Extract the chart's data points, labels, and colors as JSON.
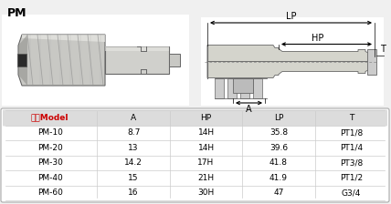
{
  "title": "PM",
  "bg_color": "#f0f0f0",
  "table_header": [
    "型号Model",
    "A",
    "HP",
    "LP",
    "T"
  ],
  "table_rows": [
    [
      "PM-10",
      "8.7",
      "14H",
      "35.8",
      "PT1/8"
    ],
    [
      "PM-20",
      "13",
      "14H",
      "39.6",
      "PT1/4"
    ],
    [
      "PM-30",
      "14.2",
      "17H",
      "41.8",
      "PT3/8"
    ],
    [
      "PM-40",
      "15",
      "21H",
      "41.9",
      "PT1/2"
    ],
    [
      "PM-60",
      "16",
      "30H",
      "47",
      "G3/4"
    ]
  ],
  "header_text_color": "#cc0000",
  "table_text_color": "#000000",
  "diagram_lp_label": "LP",
  "diagram_hp_label": "HP",
  "diagram_t_label": "T",
  "diagram_a_label": "A",
  "line_color": "#555555",
  "body_color": "#d8d8d0",
  "body_edge": "#666666"
}
